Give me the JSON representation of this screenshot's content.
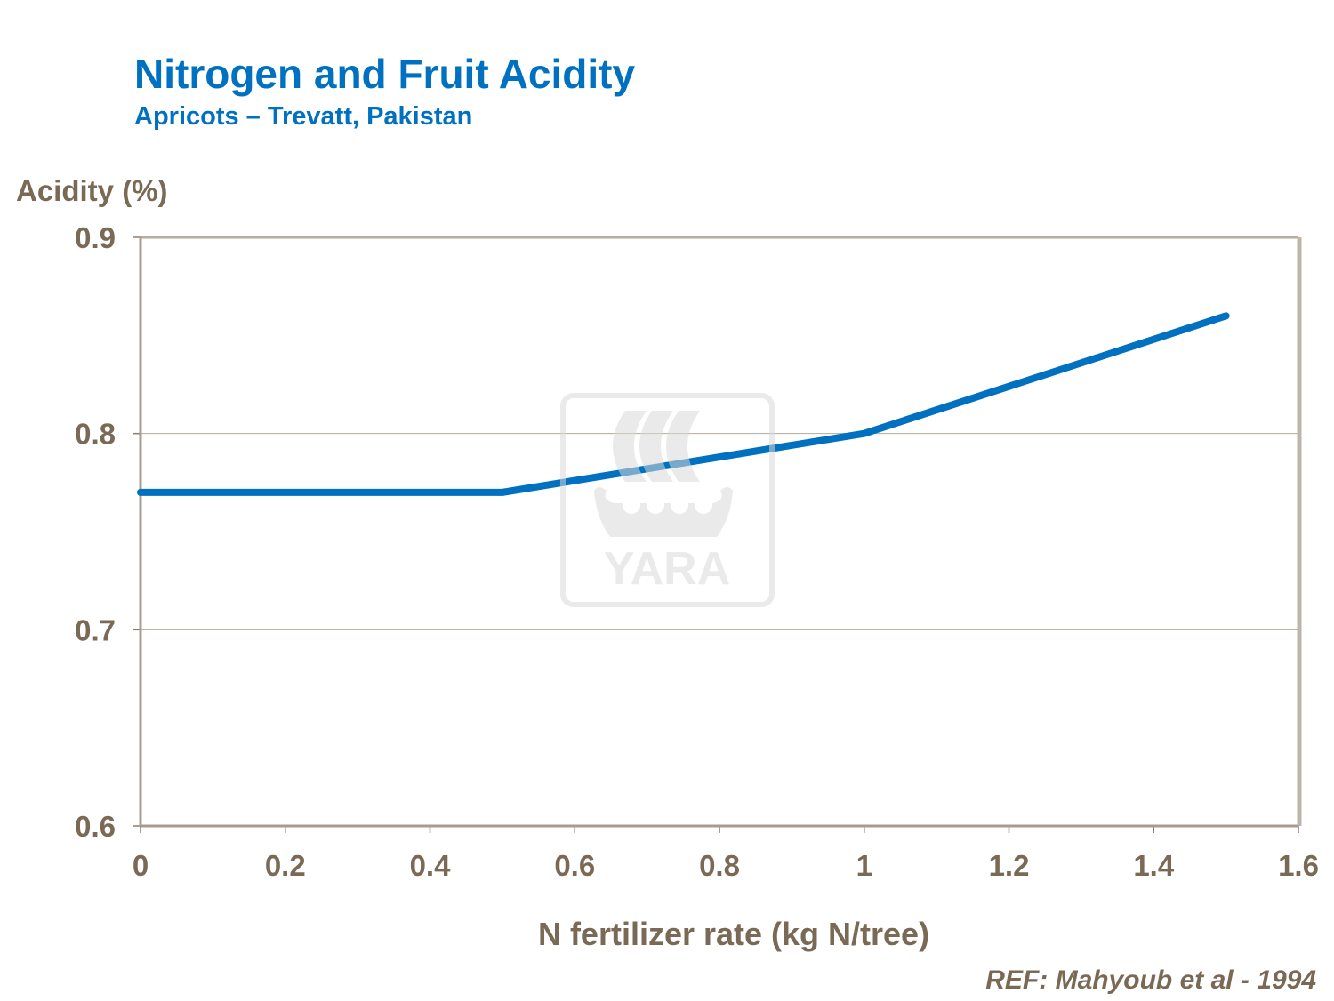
{
  "chart_data": {
    "type": "line",
    "title": "Nitrogen and Fruit Acidity",
    "subtitle": "Apricots – Trevatt, Pakistan",
    "xlabel": "N fertilizer rate (kg N/tree)",
    "ylabel": "Acidity (%)",
    "xlim": [
      0,
      1.6
    ],
    "ylim": [
      0.6,
      0.9
    ],
    "xticks": [
      "0",
      "0.2",
      "0.4",
      "0.6",
      "0.8",
      "1",
      "1.2",
      "1.4",
      "1.6"
    ],
    "yticks": [
      "0.6",
      "0.7",
      "0.8",
      "0.9"
    ],
    "grid": "horizontal",
    "series": [
      {
        "x": [
          0,
          0.5,
          1,
          1.5
        ],
        "y": [
          0.77,
          0.77,
          0.8,
          0.86
        ],
        "color": "#0070c0"
      }
    ],
    "reference": "REF: Mahyoub et al - 1994",
    "watermark": "YARA"
  }
}
